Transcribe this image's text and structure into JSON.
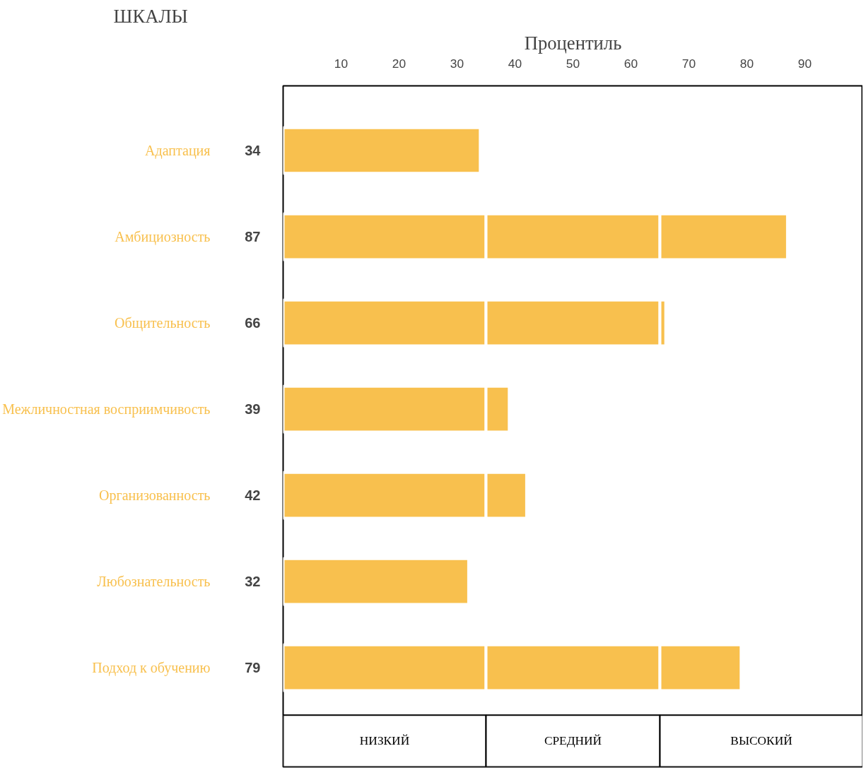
{
  "chart_data": {
    "type": "bar",
    "orientation": "horizontal",
    "stacked": true,
    "title": "ШКАЛЫ",
    "xlabel": "Процентиль",
    "categories": [
      "Адаптация",
      "Амбициозность",
      "Общительность",
      "Межличностная восприимчивость",
      "Организованность",
      "Любознательность",
      "Подход к обучению"
    ],
    "series": [
      {
        "color": "#f8c04e",
        "values": [
          34,
          35,
          35,
          35,
          35,
          32,
          35
        ]
      },
      {
        "color": "#f8c04e",
        "values": [
          null,
          30,
          30,
          4,
          7,
          null,
          30
        ]
      },
      {
        "color": "#f8c04e",
        "values": [
          null,
          22,
          1,
          null,
          null,
          null,
          14
        ]
      }
    ],
    "totals": [
      "34",
      "87",
      "66",
      "39",
      "42",
      "32",
      "79"
    ],
    "xlim": [
      0,
      100
    ],
    "xticks": [
      10,
      20,
      30,
      40,
      50,
      60,
      70,
      80,
      90
    ],
    "bands": [
      {
        "axis": "x",
        "from": 0,
        "to": 35,
        "label": "НИЗКИЙ"
      },
      {
        "axis": "x",
        "from": 35,
        "to": 65,
        "label": "СРЕДНИЙ"
      },
      {
        "axis": "x",
        "from": 65,
        "to": 100,
        "label": "ВЫСОКИЙ"
      }
    ]
  }
}
